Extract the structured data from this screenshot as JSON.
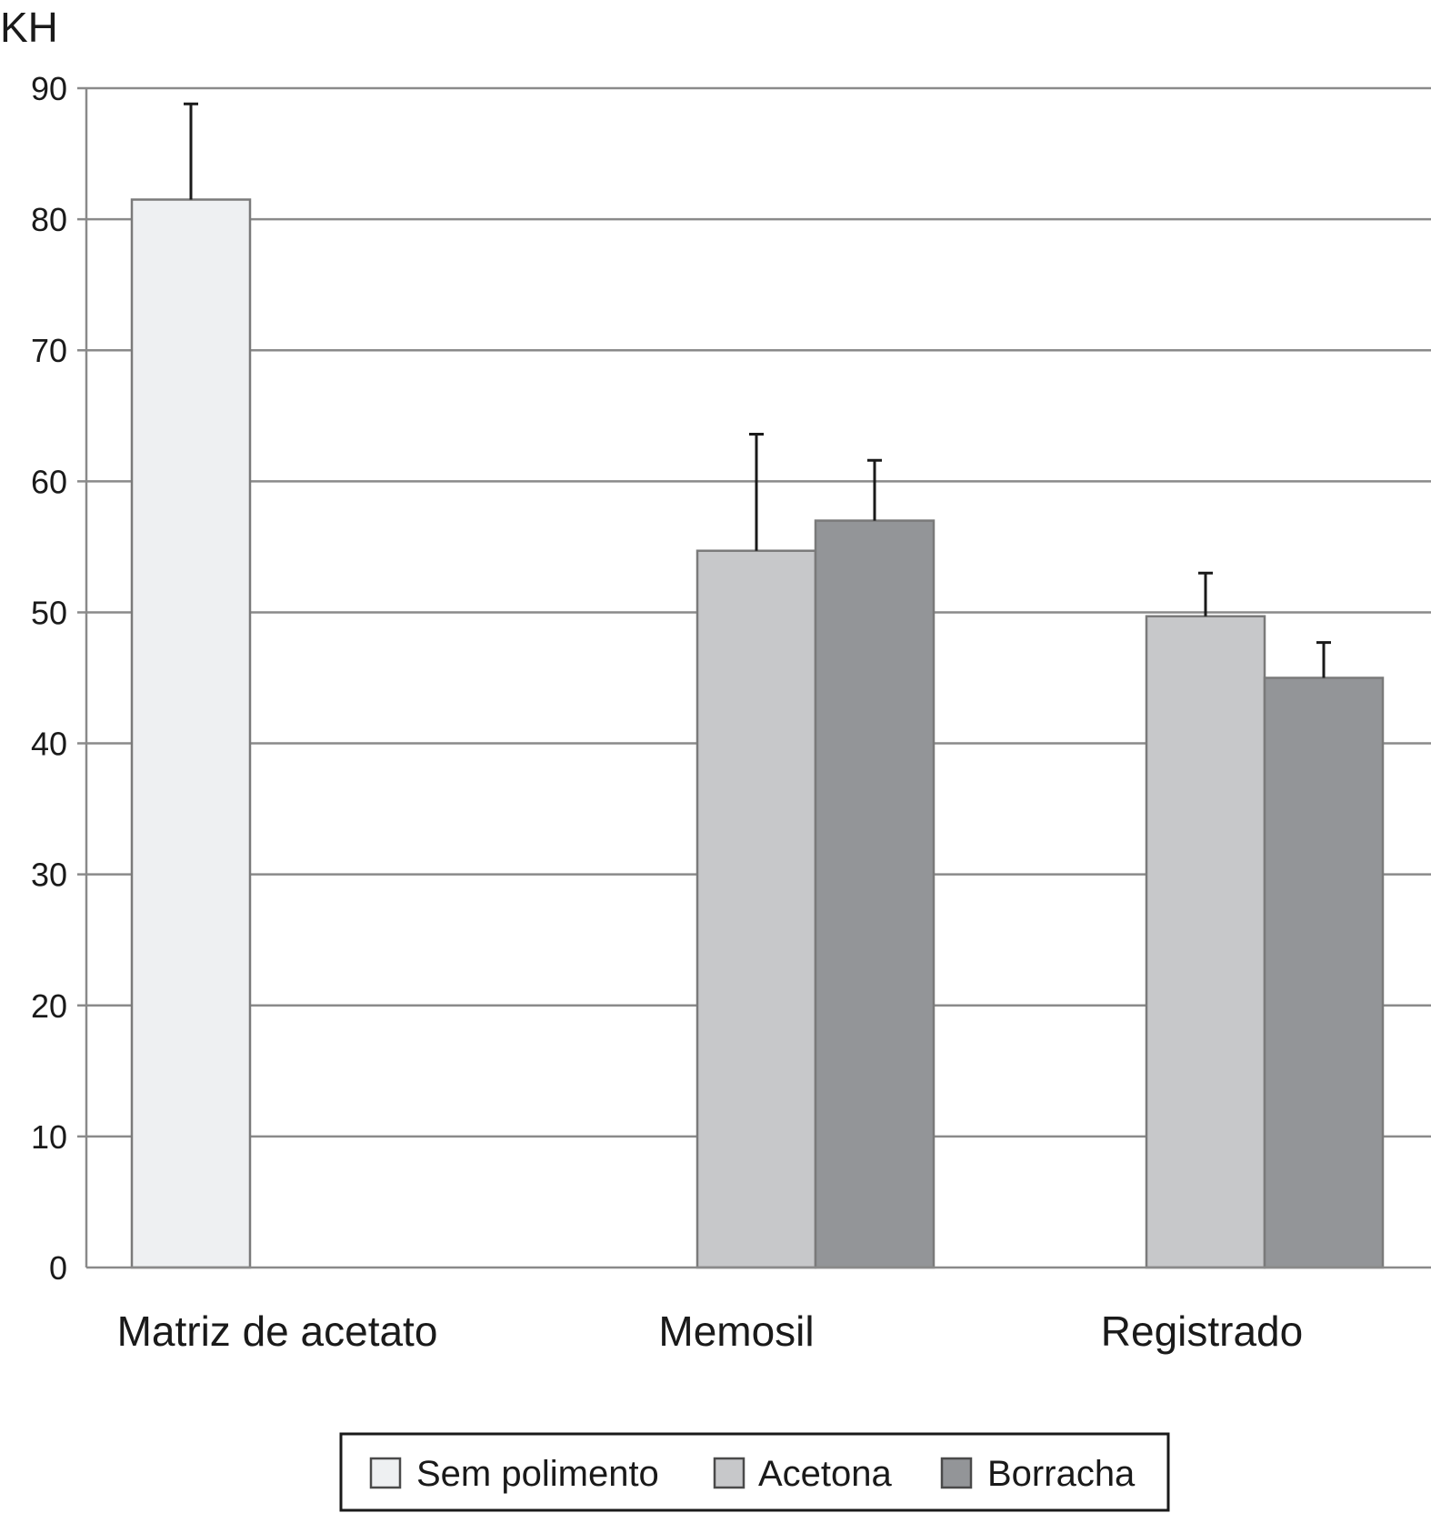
{
  "chart_data": {
    "type": "bar",
    "ylabel": "KH",
    "ylim": [
      0,
      90
    ],
    "yticks": [
      0,
      10,
      20,
      30,
      40,
      50,
      60,
      70,
      80,
      90
    ],
    "categories": [
      "Matriz de acetato",
      "Memosil",
      "Registrado"
    ],
    "grid": true,
    "legend_position": "bottom-center",
    "series": [
      {
        "name": "Sem polimento",
        "color": "#eef0f2",
        "values": [
          81.5,
          null,
          null
        ],
        "errors": [
          7.3,
          null,
          null
        ]
      },
      {
        "name": "Acetona",
        "color": "#c7c8ca",
        "values": [
          null,
          54.7,
          49.7
        ],
        "errors": [
          null,
          8.9,
          3.3
        ]
      },
      {
        "name": "Borracha",
        "color": "#939598",
        "values": [
          null,
          57.0,
          45.0
        ],
        "errors": [
          null,
          4.6,
          2.7
        ]
      }
    ]
  }
}
